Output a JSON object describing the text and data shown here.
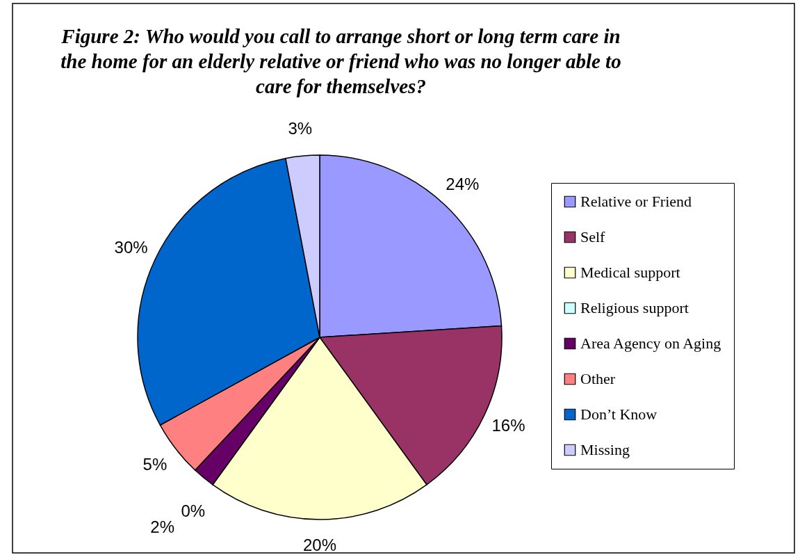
{
  "chart_data": {
    "type": "pie",
    "title": "Figure 2: Who would you call to arrange short or long term care in the home for an elderly relative or friend who was no longer able to care for themselves?",
    "categories": [
      "Relative or Friend",
      "Self",
      "Medical support",
      "Religious support",
      "Area Agency on Aging",
      "Other",
      "Don’t Know",
      "Missing"
    ],
    "values": [
      24,
      16,
      20,
      0,
      2,
      5,
      30,
      3
    ],
    "value_labels": [
      "24%",
      "16%",
      "20%",
      "0%",
      "2%",
      "5%",
      "30%",
      "3%"
    ],
    "colors": [
      "#9999ff",
      "#993366",
      "#ffffcc",
      "#ccffff",
      "#660066",
      "#ff8080",
      "#0066cc",
      "#ccccff"
    ],
    "legend": "right"
  }
}
